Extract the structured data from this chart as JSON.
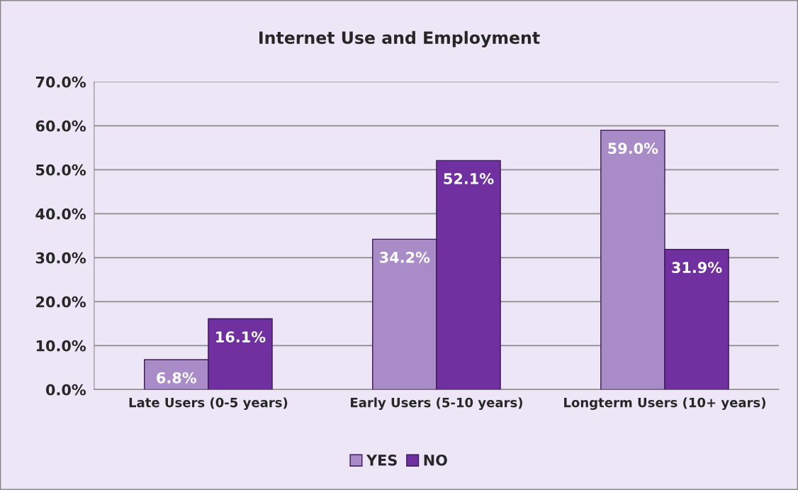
{
  "chart_data": {
    "type": "bar",
    "title": "Internet Use and Employment",
    "categories": [
      "Late Users (0-5 years)",
      "Early Users (5-10 years)",
      "Longterm Users (10+ years)"
    ],
    "series": [
      {
        "name": "YES",
        "color": "#a98bc8",
        "values": [
          6.8,
          34.2,
          59.0
        ],
        "value_labels": [
          "6.8%",
          "34.2%",
          "59.0%"
        ]
      },
      {
        "name": "NO",
        "color": "#7030a0",
        "values": [
          16.1,
          52.1,
          31.9
        ],
        "value_labels": [
          "16.1%",
          "52.1%",
          "31.9%"
        ]
      }
    ],
    "ylim": [
      0,
      70
    ],
    "yticks": [
      {
        "value": 0,
        "label": "0.0%"
      },
      {
        "value": 10,
        "label": "10.0%"
      },
      {
        "value": 20,
        "label": "20.0%"
      },
      {
        "value": 30,
        "label": "30.0%"
      },
      {
        "value": 40,
        "label": "40.0%"
      },
      {
        "value": 50,
        "label": "50.0%"
      },
      {
        "value": 60,
        "label": "60.0%"
      },
      {
        "value": 70,
        "label": "70.0%"
      }
    ],
    "grid": "y",
    "legend": "bottom"
  }
}
